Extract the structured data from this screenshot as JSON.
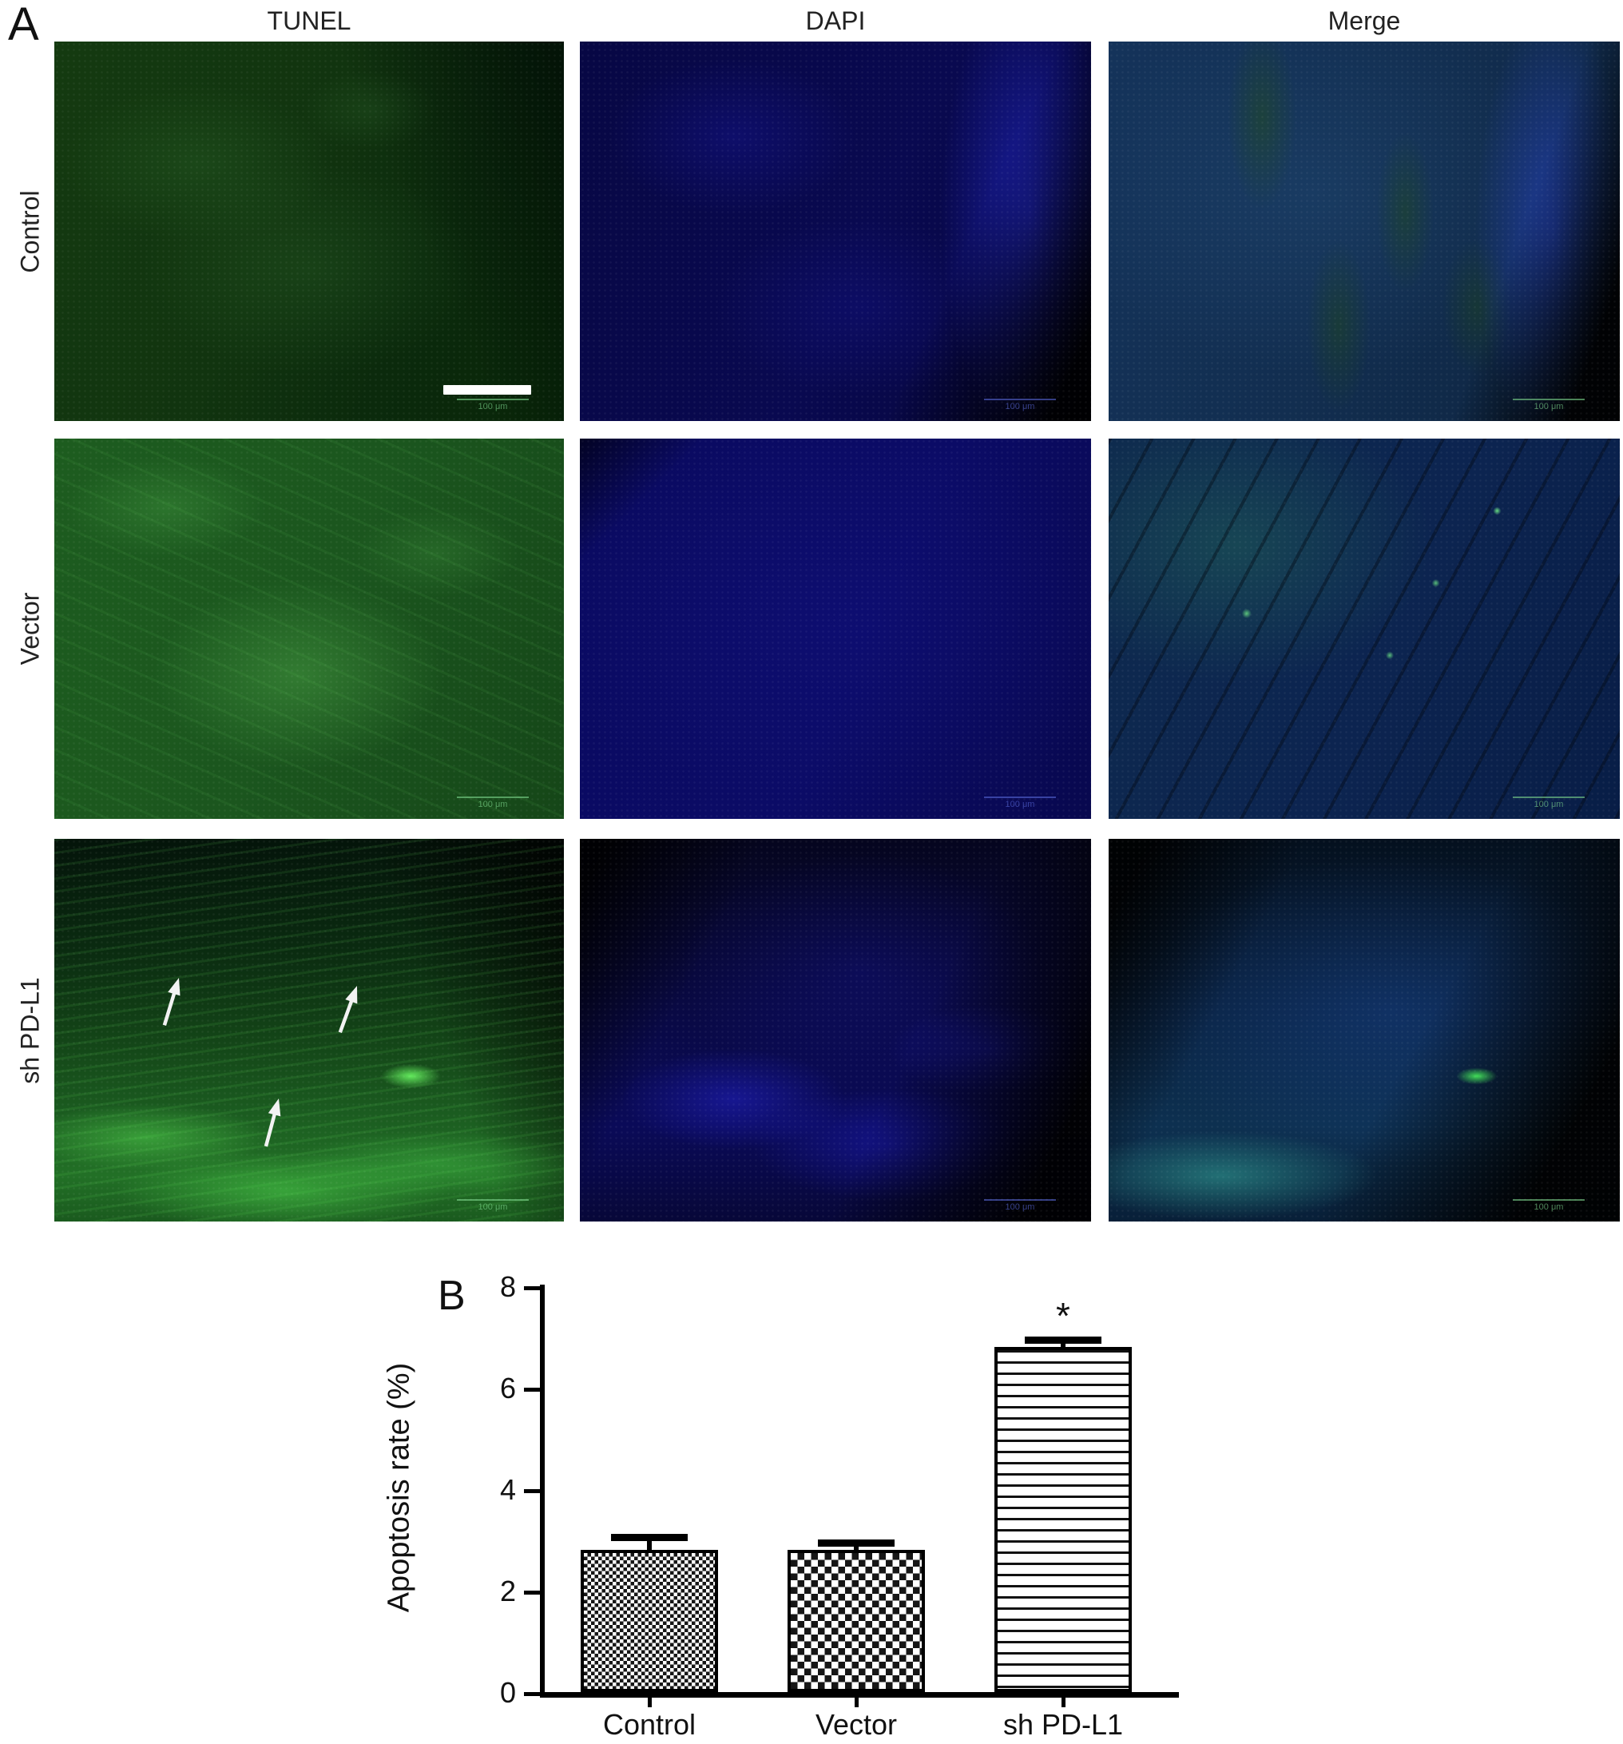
{
  "figure": {
    "panel_a_label": "A",
    "panel_b_label": "B"
  },
  "panel_a": {
    "column_headers": [
      "TUNEL",
      "DAPI",
      "Merge"
    ],
    "row_labels": [
      "Control",
      "Vector",
      "sh PD-L1"
    ],
    "scale_bar_text": "100 μm",
    "annotations": {
      "arrow_count": 3,
      "arrows_location": "sh PD-L1 TUNEL image"
    }
  },
  "chart_data": {
    "type": "bar",
    "categories": [
      "Control",
      "Vector",
      "sh PD-L1"
    ],
    "values": [
      2.8,
      2.8,
      6.8
    ],
    "errors_upper": [
      0.3,
      0.2,
      0.2
    ],
    "title": "",
    "xlabel": "",
    "ylabel": "Apoptosis rate (%)",
    "ylim": [
      0,
      8
    ],
    "yticks": [
      0,
      2,
      4,
      6,
      8
    ],
    "bar_patterns": [
      "checker-fine",
      "checker-coarse",
      "horizontal-lines"
    ],
    "bar_fill": "#ffffff",
    "bar_border": "#000000",
    "significance": {
      "category": "sh PD-L1",
      "label": "*"
    },
    "grid": false,
    "legend": "none"
  }
}
